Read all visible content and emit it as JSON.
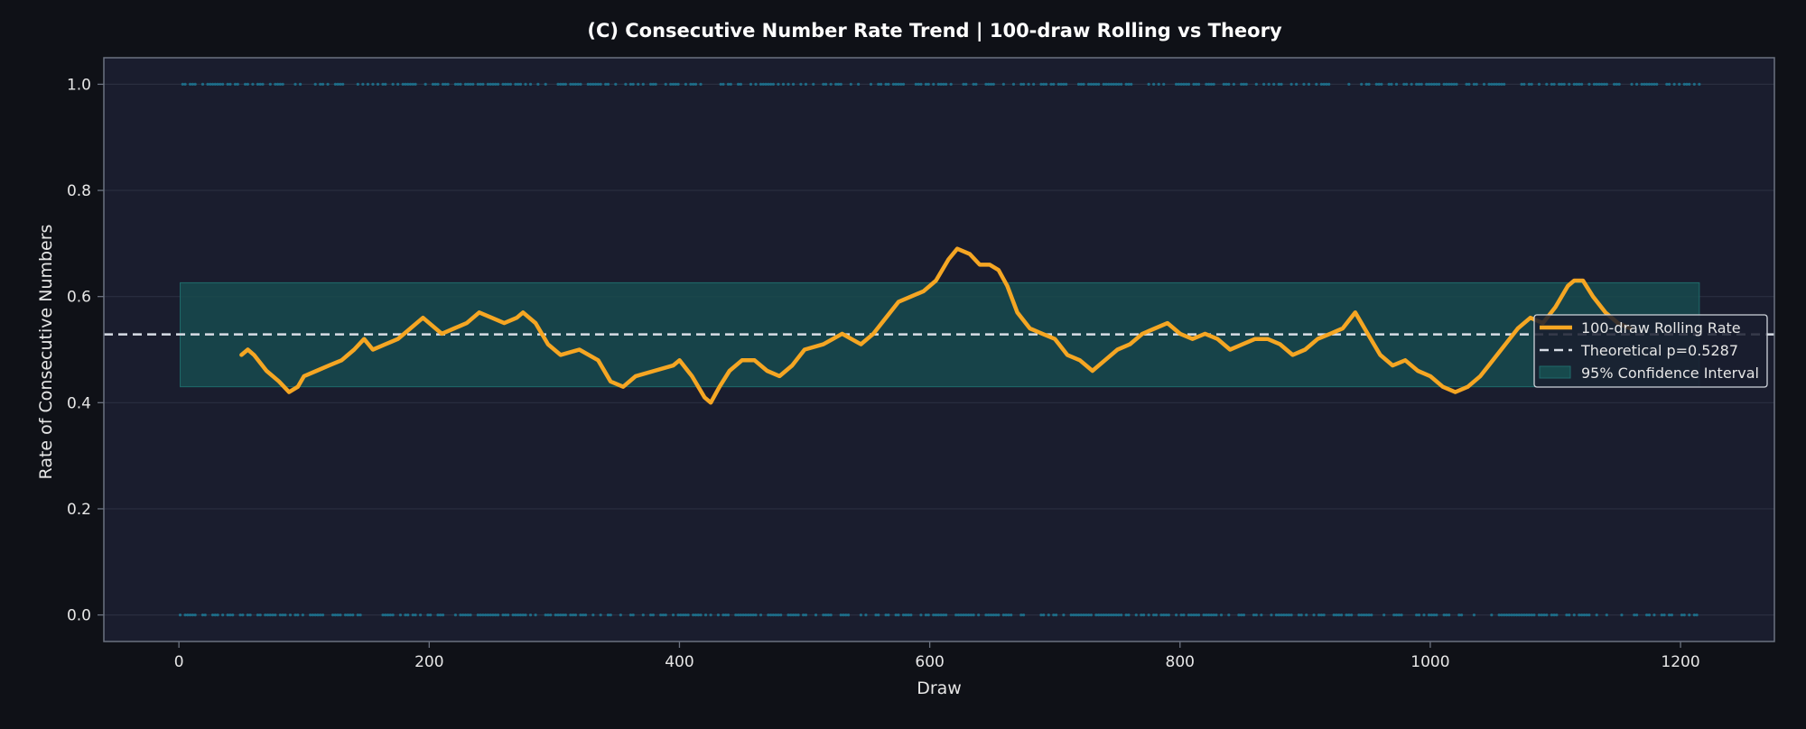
{
  "colors": {
    "page_bg": "#0f1117",
    "plot_bg": "#1a1d2e",
    "grid": "#2a2e40",
    "frame": "#6b7280",
    "rolling_line": "#f5a623",
    "theory_line": "#d8dde6",
    "ci_fill": "#174a4d",
    "ci_edge": "#1f6b6b",
    "binary_points": "#1aa3c4"
  },
  "chart_data": {
    "type": "line",
    "title": "(C) Consecutive Number Rate Trend  |  100-draw Rolling vs Theory",
    "xlabel": "Draw",
    "ylabel": "Rate of Consecutive Numbers",
    "xlim": [
      -60,
      1275
    ],
    "ylim": [
      -0.05,
      1.05
    ],
    "xticks": [
      0,
      200,
      400,
      600,
      800,
      1000,
      1200
    ],
    "xtick_labels": [
      "0",
      "200",
      "400",
      "600",
      "800",
      "1000",
      "1200"
    ],
    "yticks": [
      0.0,
      0.2,
      0.4,
      0.6,
      0.8,
      1.0
    ],
    "ytick_labels": [
      "0.0",
      "0.2",
      "0.4",
      "0.6",
      "0.8",
      "1.0"
    ],
    "grid": true,
    "legend_position": "center-right",
    "theoretical_p": 0.5287,
    "confidence_interval": {
      "x_range": [
        1,
        1215
      ],
      "lower": 0.43,
      "upper": 0.626
    },
    "binary_points": {
      "x_range": [
        1,
        1215
      ],
      "levels": [
        0,
        1
      ]
    },
    "series": [
      {
        "name": "100-draw Rolling Rate",
        "x": [
          50,
          55,
          60,
          70,
          80,
          88,
          95,
          100,
          110,
          120,
          130,
          140,
          148,
          155,
          165,
          175,
          185,
          195,
          200,
          210,
          220,
          230,
          240,
          250,
          260,
          270,
          275,
          285,
          295,
          305,
          320,
          335,
          345,
          355,
          365,
          380,
          395,
          400,
          410,
          420,
          425,
          432,
          440,
          450,
          460,
          470,
          480,
          490,
          500,
          515,
          530,
          545,
          555,
          565,
          575,
          585,
          595,
          605,
          615,
          622,
          632,
          640,
          648,
          655,
          662,
          670,
          680,
          690,
          700,
          710,
          720,
          730,
          740,
          750,
          760,
          770,
          780,
          790,
          800,
          810,
          820,
          830,
          840,
          850,
          860,
          870,
          880,
          890,
          900,
          910,
          920,
          930,
          940,
          950,
          960,
          970,
          980,
          990,
          1000,
          1010,
          1020,
          1030,
          1040,
          1050,
          1060,
          1070,
          1080,
          1090,
          1100,
          1110,
          1115,
          1122,
          1130,
          1140,
          1150,
          1160
        ],
        "values": [
          0.49,
          0.5,
          0.49,
          0.46,
          0.44,
          0.42,
          0.43,
          0.45,
          0.46,
          0.47,
          0.48,
          0.5,
          0.52,
          0.5,
          0.51,
          0.52,
          0.54,
          0.56,
          0.55,
          0.53,
          0.54,
          0.55,
          0.57,
          0.56,
          0.55,
          0.56,
          0.57,
          0.55,
          0.51,
          0.49,
          0.5,
          0.48,
          0.44,
          0.43,
          0.45,
          0.46,
          0.47,
          0.48,
          0.45,
          0.41,
          0.4,
          0.43,
          0.46,
          0.48,
          0.48,
          0.46,
          0.45,
          0.47,
          0.5,
          0.51,
          0.53,
          0.51,
          0.53,
          0.56,
          0.59,
          0.6,
          0.61,
          0.63,
          0.67,
          0.69,
          0.68,
          0.66,
          0.66,
          0.65,
          0.62,
          0.57,
          0.54,
          0.53,
          0.52,
          0.49,
          0.48,
          0.46,
          0.48,
          0.5,
          0.51,
          0.53,
          0.54,
          0.55,
          0.53,
          0.52,
          0.53,
          0.52,
          0.5,
          0.51,
          0.52,
          0.52,
          0.51,
          0.49,
          0.5,
          0.52,
          0.53,
          0.54,
          0.57,
          0.53,
          0.49,
          0.47,
          0.48,
          0.46,
          0.45,
          0.43,
          0.42,
          0.43,
          0.45,
          0.48,
          0.51,
          0.54,
          0.56,
          0.55,
          0.58,
          0.62,
          0.63,
          0.63,
          0.6,
          0.57,
          0.55,
          0.54
        ]
      },
      {
        "name": "Theoretical p=0.5287",
        "x": [
          -60,
          1275
        ],
        "values": [
          0.5287,
          0.5287
        ]
      },
      {
        "name": "95% Confidence Interval"
      }
    ]
  }
}
